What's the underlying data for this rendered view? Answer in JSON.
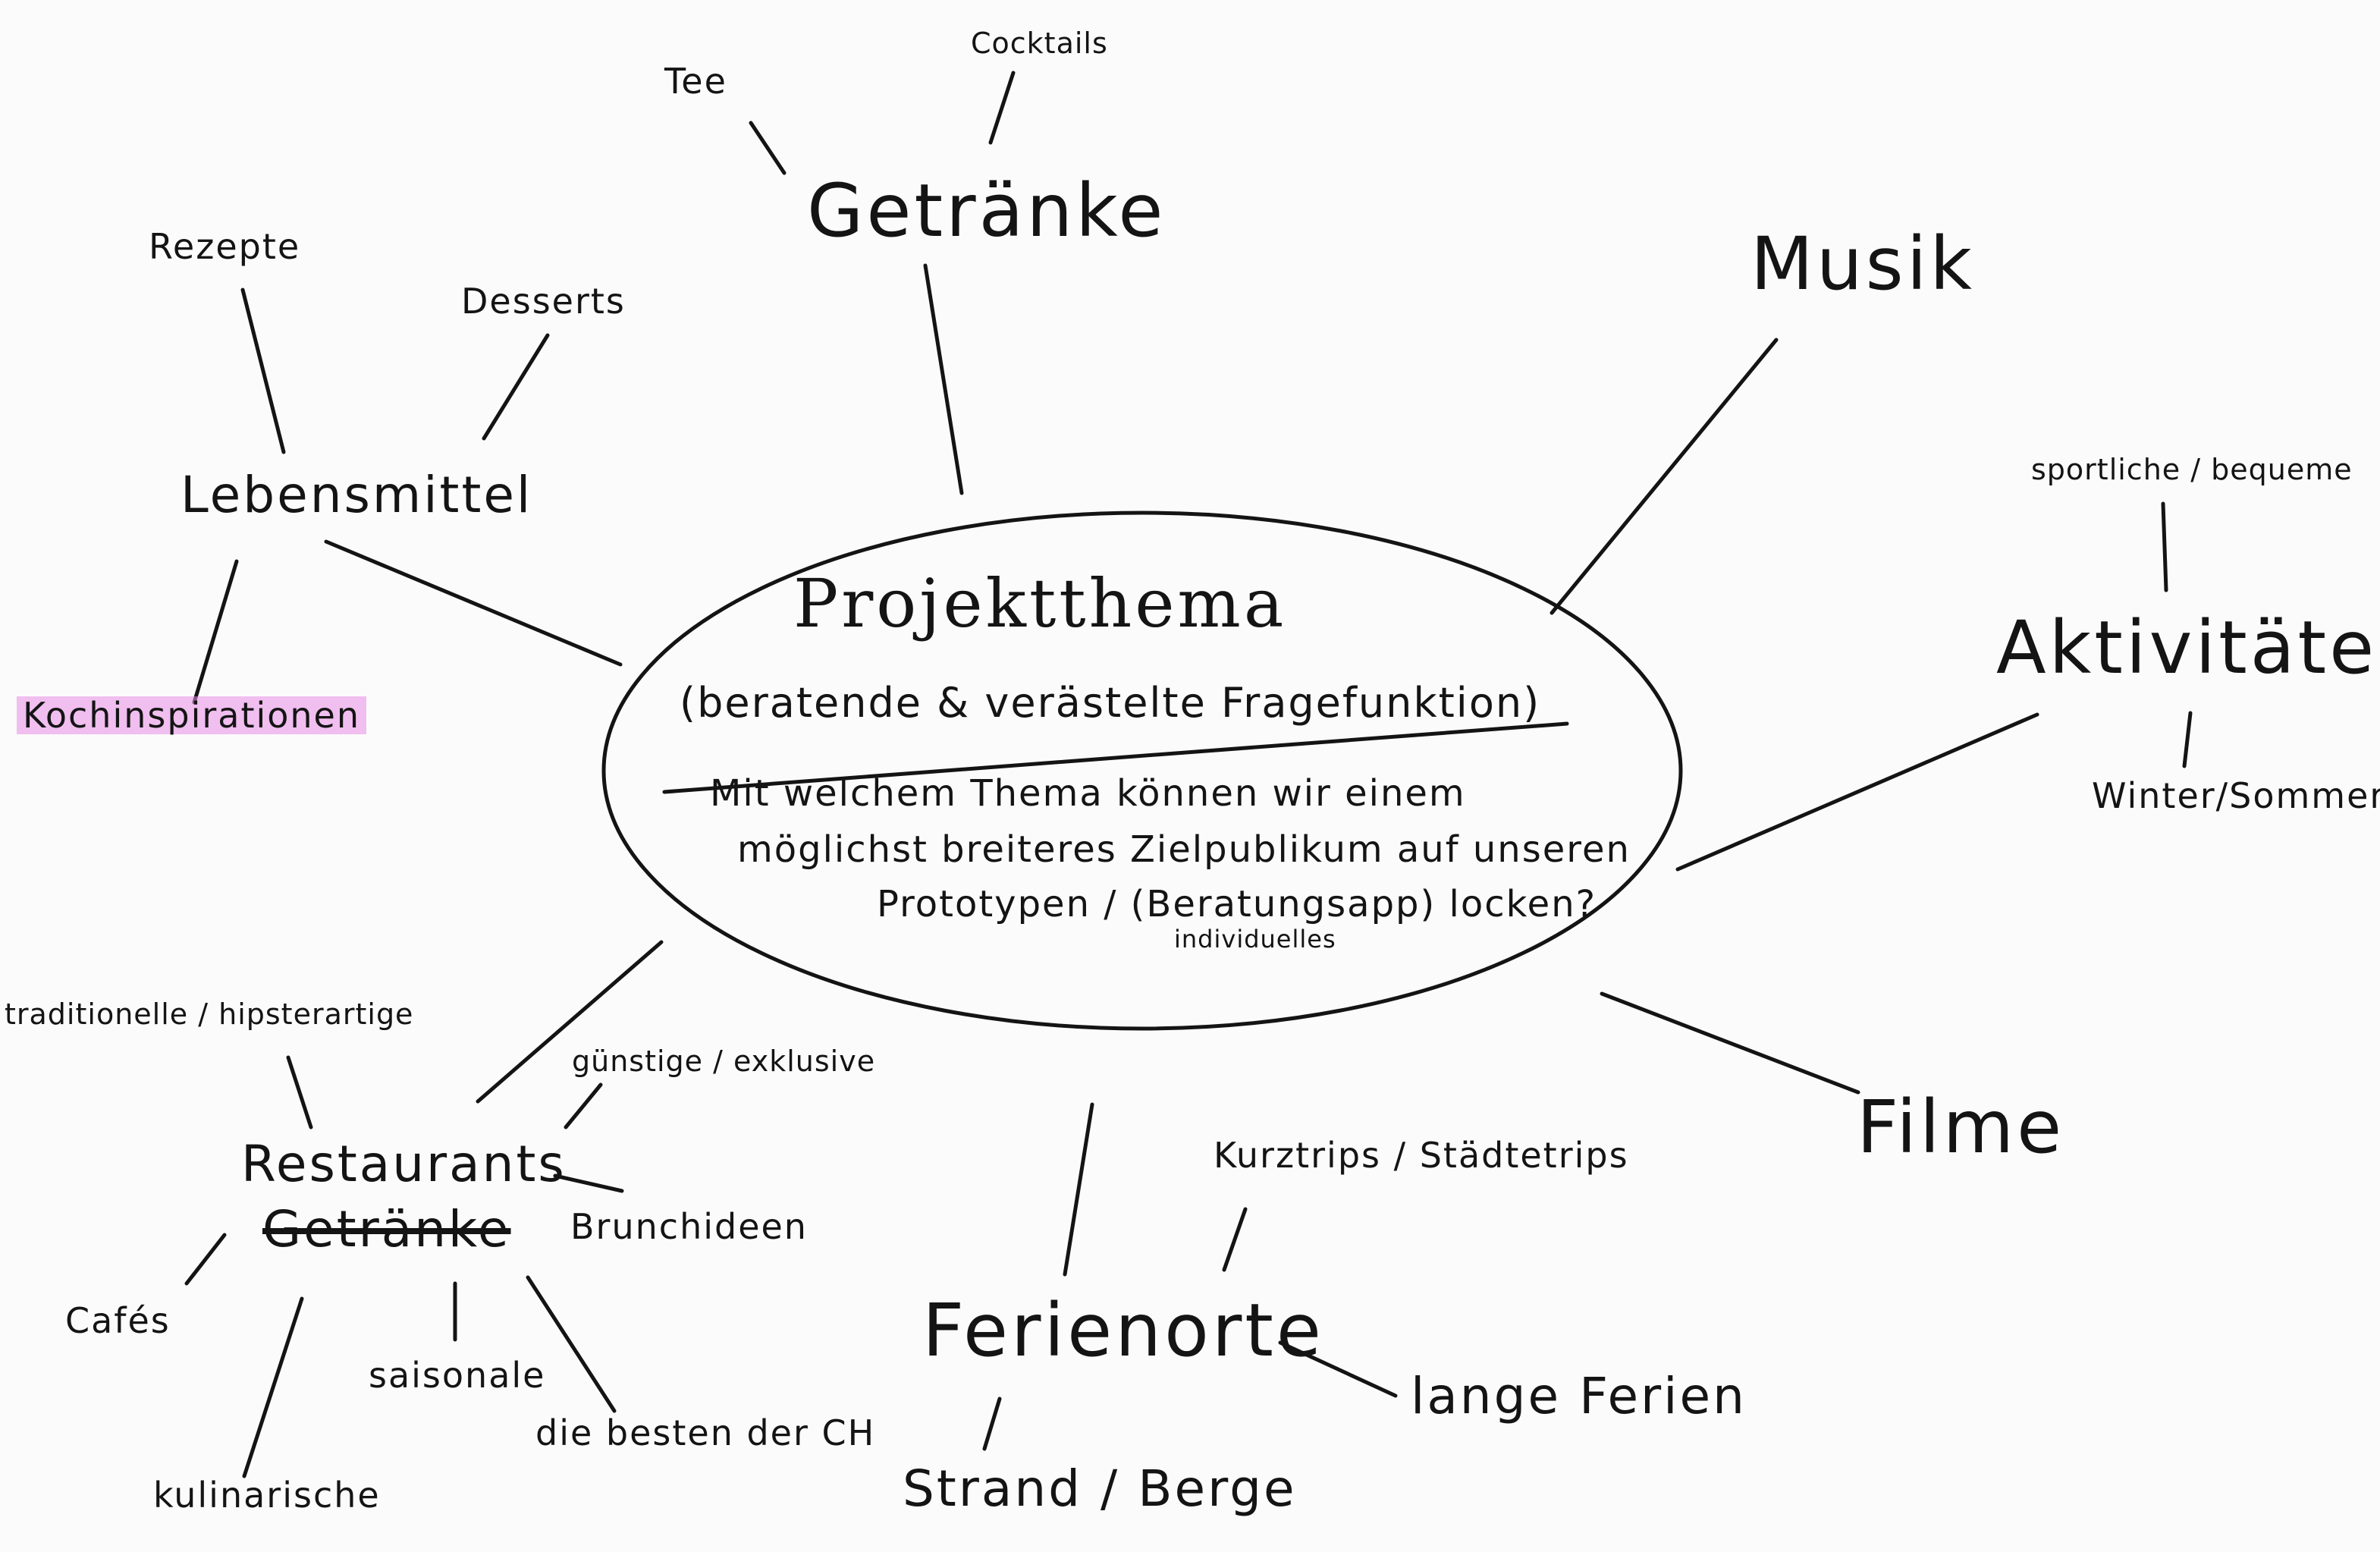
{
  "center": {
    "title": "Projektthema",
    "subtitle": "(beratende & verästelte Fragefunktion)",
    "question_line1": "Mit welchem Thema können wir einem",
    "question_line2": "möglichst breiteres Zielpublikum auf unseren",
    "question_line3": "Prototypen / (Beratungsapp) locken?",
    "insert_note": "individuelles"
  },
  "branches": {
    "getraenke": {
      "label": "Getränke",
      "tee": "Tee",
      "cocktails": "Cocktails"
    },
    "lebensmittel": {
      "label": "Lebensmittel",
      "rezepte": "Rezepte",
      "desserts": "Desserts",
      "kochinspirationen": "Kochinspirationen"
    },
    "musik": {
      "label": "Musik"
    },
    "aktivitaeten": {
      "label": "Aktivitäten",
      "sportliche": "sportliche / bequeme",
      "winter": "Winter/Sommer"
    },
    "filme": {
      "label": "Filme"
    },
    "ferienorte": {
      "label": "Ferienorte",
      "kurztrips": "Kurztrips / Städtetrips",
      "lange": "lange Ferien",
      "strand": "Strand / Berge"
    },
    "restaurants": {
      "label": "Restaurants",
      "crossed": "Getränke",
      "traditionelle": "traditionelle / hipsterartige",
      "guenstige": "günstige / exklusive",
      "brunch": "Brunchideen",
      "cafes": "Cafés",
      "kulinarische": "kulinarische",
      "saisonale": "saisonale",
      "beste": "die besten der CH"
    }
  },
  "colors": {
    "ink": "#141414",
    "highlight": "#e88ce6",
    "paper": "#fbfbfb"
  }
}
